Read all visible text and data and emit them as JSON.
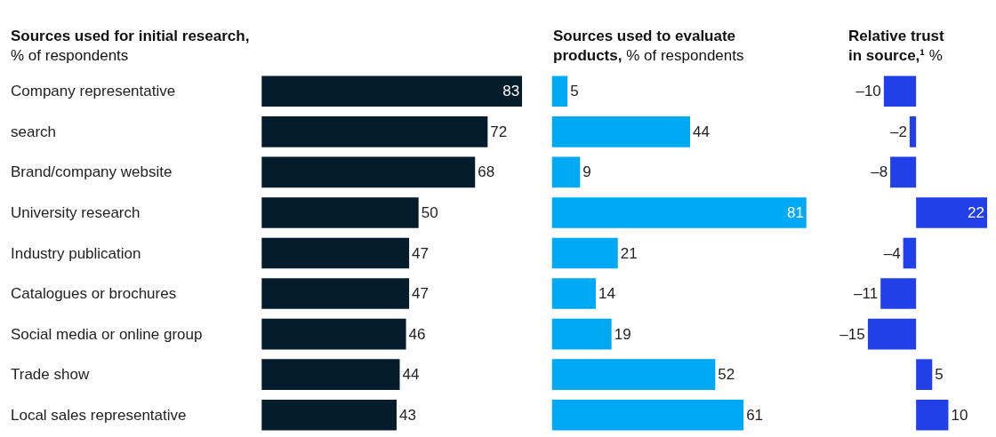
{
  "chart_data": [
    {
      "type": "bar",
      "orientation": "horizontal",
      "title": "Sources used for initial research,",
      "subtitle": "% of respondents",
      "categories": [
        "Company representative",
        "search",
        "Brand/company website",
        "University research",
        "Industry publication",
        "Catalogues or brochures",
        "Social media or online group",
        "Trade show",
        "Local sales representative"
      ],
      "values": [
        83,
        72,
        68,
        50,
        47,
        47,
        46,
        44,
        43
      ],
      "color": "#041c2c",
      "data_labels": true,
      "tick_labels": "y"
    },
    {
      "type": "bar",
      "orientation": "horizontal",
      "title": "Sources used to evaluate products,",
      "subtitle": "% of respondents",
      "categories": [
        null,
        null,
        null,
        null,
        null,
        null,
        null,
        null,
        null
      ],
      "values": [
        5,
        44,
        9,
        81,
        21,
        14,
        19,
        52,
        61
      ],
      "color": "#00a9f4",
      "data_labels": true,
      "tick_labels": false
    },
    {
      "type": "bar",
      "orientation": "horizontal",
      "title": "Relative trust in source,¹",
      "subtitle": "%",
      "categories": [
        null,
        null,
        null,
        null,
        null,
        null,
        null,
        null,
        null
      ],
      "values": [
        -10,
        -2,
        -8,
        22,
        -4,
        -11,
        -15,
        5,
        10
      ],
      "value_labels": [
        "–10",
        "–2",
        "–8",
        "22",
        "–4",
        "–11",
        "–15",
        "5",
        "10"
      ],
      "color": "#2140e8",
      "tick_labels": false
    }
  ]
}
